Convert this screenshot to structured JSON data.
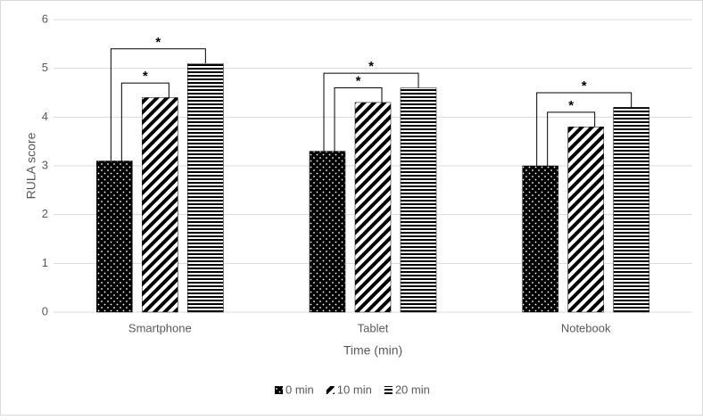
{
  "chart_data": {
    "type": "bar",
    "x_label": "Time (min)",
    "y_label": "RULA score",
    "categories": [
      "Smartphone",
      "Tablet",
      "Notebook"
    ],
    "series": [
      {
        "name": "0 min",
        "color": "#000000",
        "pattern": "dots",
        "values": [
          3.1,
          3.3,
          3.0
        ]
      },
      {
        "name": "10 min",
        "color": "#000000",
        "pattern": "diagonal",
        "values": [
          4.4,
          4.3,
          3.8
        ]
      },
      {
        "name": "20 min",
        "color": "#000000",
        "pattern": "horizontal",
        "values": [
          5.1,
          4.6,
          4.2
        ]
      }
    ],
    "significance": [
      {
        "category": "Smartphone",
        "pairs": [
          {
            "series": [
              "0 min",
              "10 min"
            ],
            "label": "*"
          },
          {
            "series": [
              "0 min",
              "20 min"
            ],
            "label": "*"
          }
        ]
      },
      {
        "category": "Tablet",
        "pairs": [
          {
            "series": [
              "0 min",
              "10 min"
            ],
            "label": "*"
          },
          {
            "series": [
              "0 min",
              "20 min"
            ],
            "label": "*"
          }
        ]
      },
      {
        "category": "Notebook",
        "pairs": [
          {
            "series": [
              "0 min",
              "10 min"
            ],
            "label": "*"
          },
          {
            "series": [
              "0 min",
              "20 min"
            ],
            "label": "*"
          }
        ]
      }
    ],
    "ylim": [
      0,
      6
    ],
    "yticks": [
      0,
      1,
      2,
      3,
      4,
      5,
      6
    ],
    "grid": true,
    "legend": "bottom"
  }
}
